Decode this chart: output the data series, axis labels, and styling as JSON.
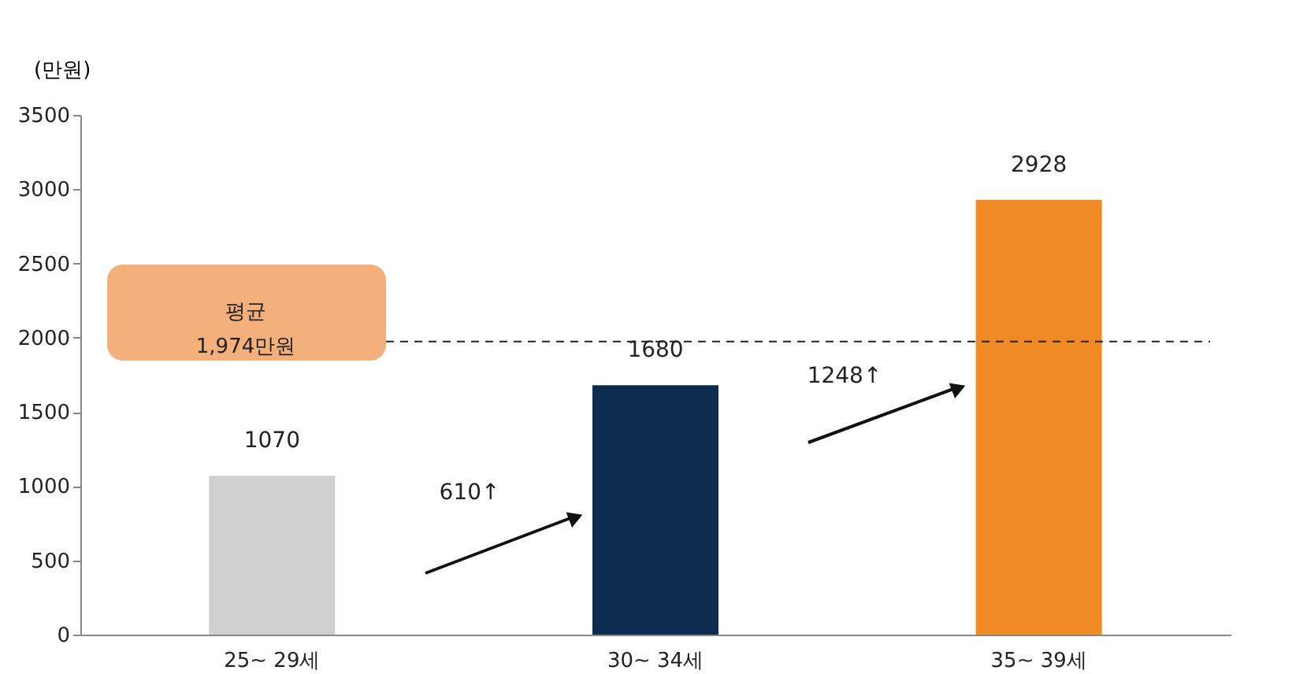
{
  "chart_data": {
    "type": "bar",
    "ylabel": "(만원)",
    "categories": [
      "25~ 29세",
      "30~ 34세",
      "35~ 39세"
    ],
    "values": [
      1070,
      1680,
      2928
    ],
    "colors": [
      "#d0d0d0",
      "#0d2b4e",
      "#f08a24"
    ],
    "ylim": [
      0,
      3500
    ],
    "yticks": [
      0,
      500,
      1000,
      1500,
      2000,
      2500,
      3000,
      3500
    ],
    "grid": false,
    "data_labels": true,
    "ref_lines": [
      {
        "axis": "y",
        "value": 1974,
        "label": "평균\n1,974만원",
        "color": "#222222",
        "line_style": "dashed"
      }
    ],
    "annotations": [
      "610↑",
      "1248↑"
    ]
  }
}
